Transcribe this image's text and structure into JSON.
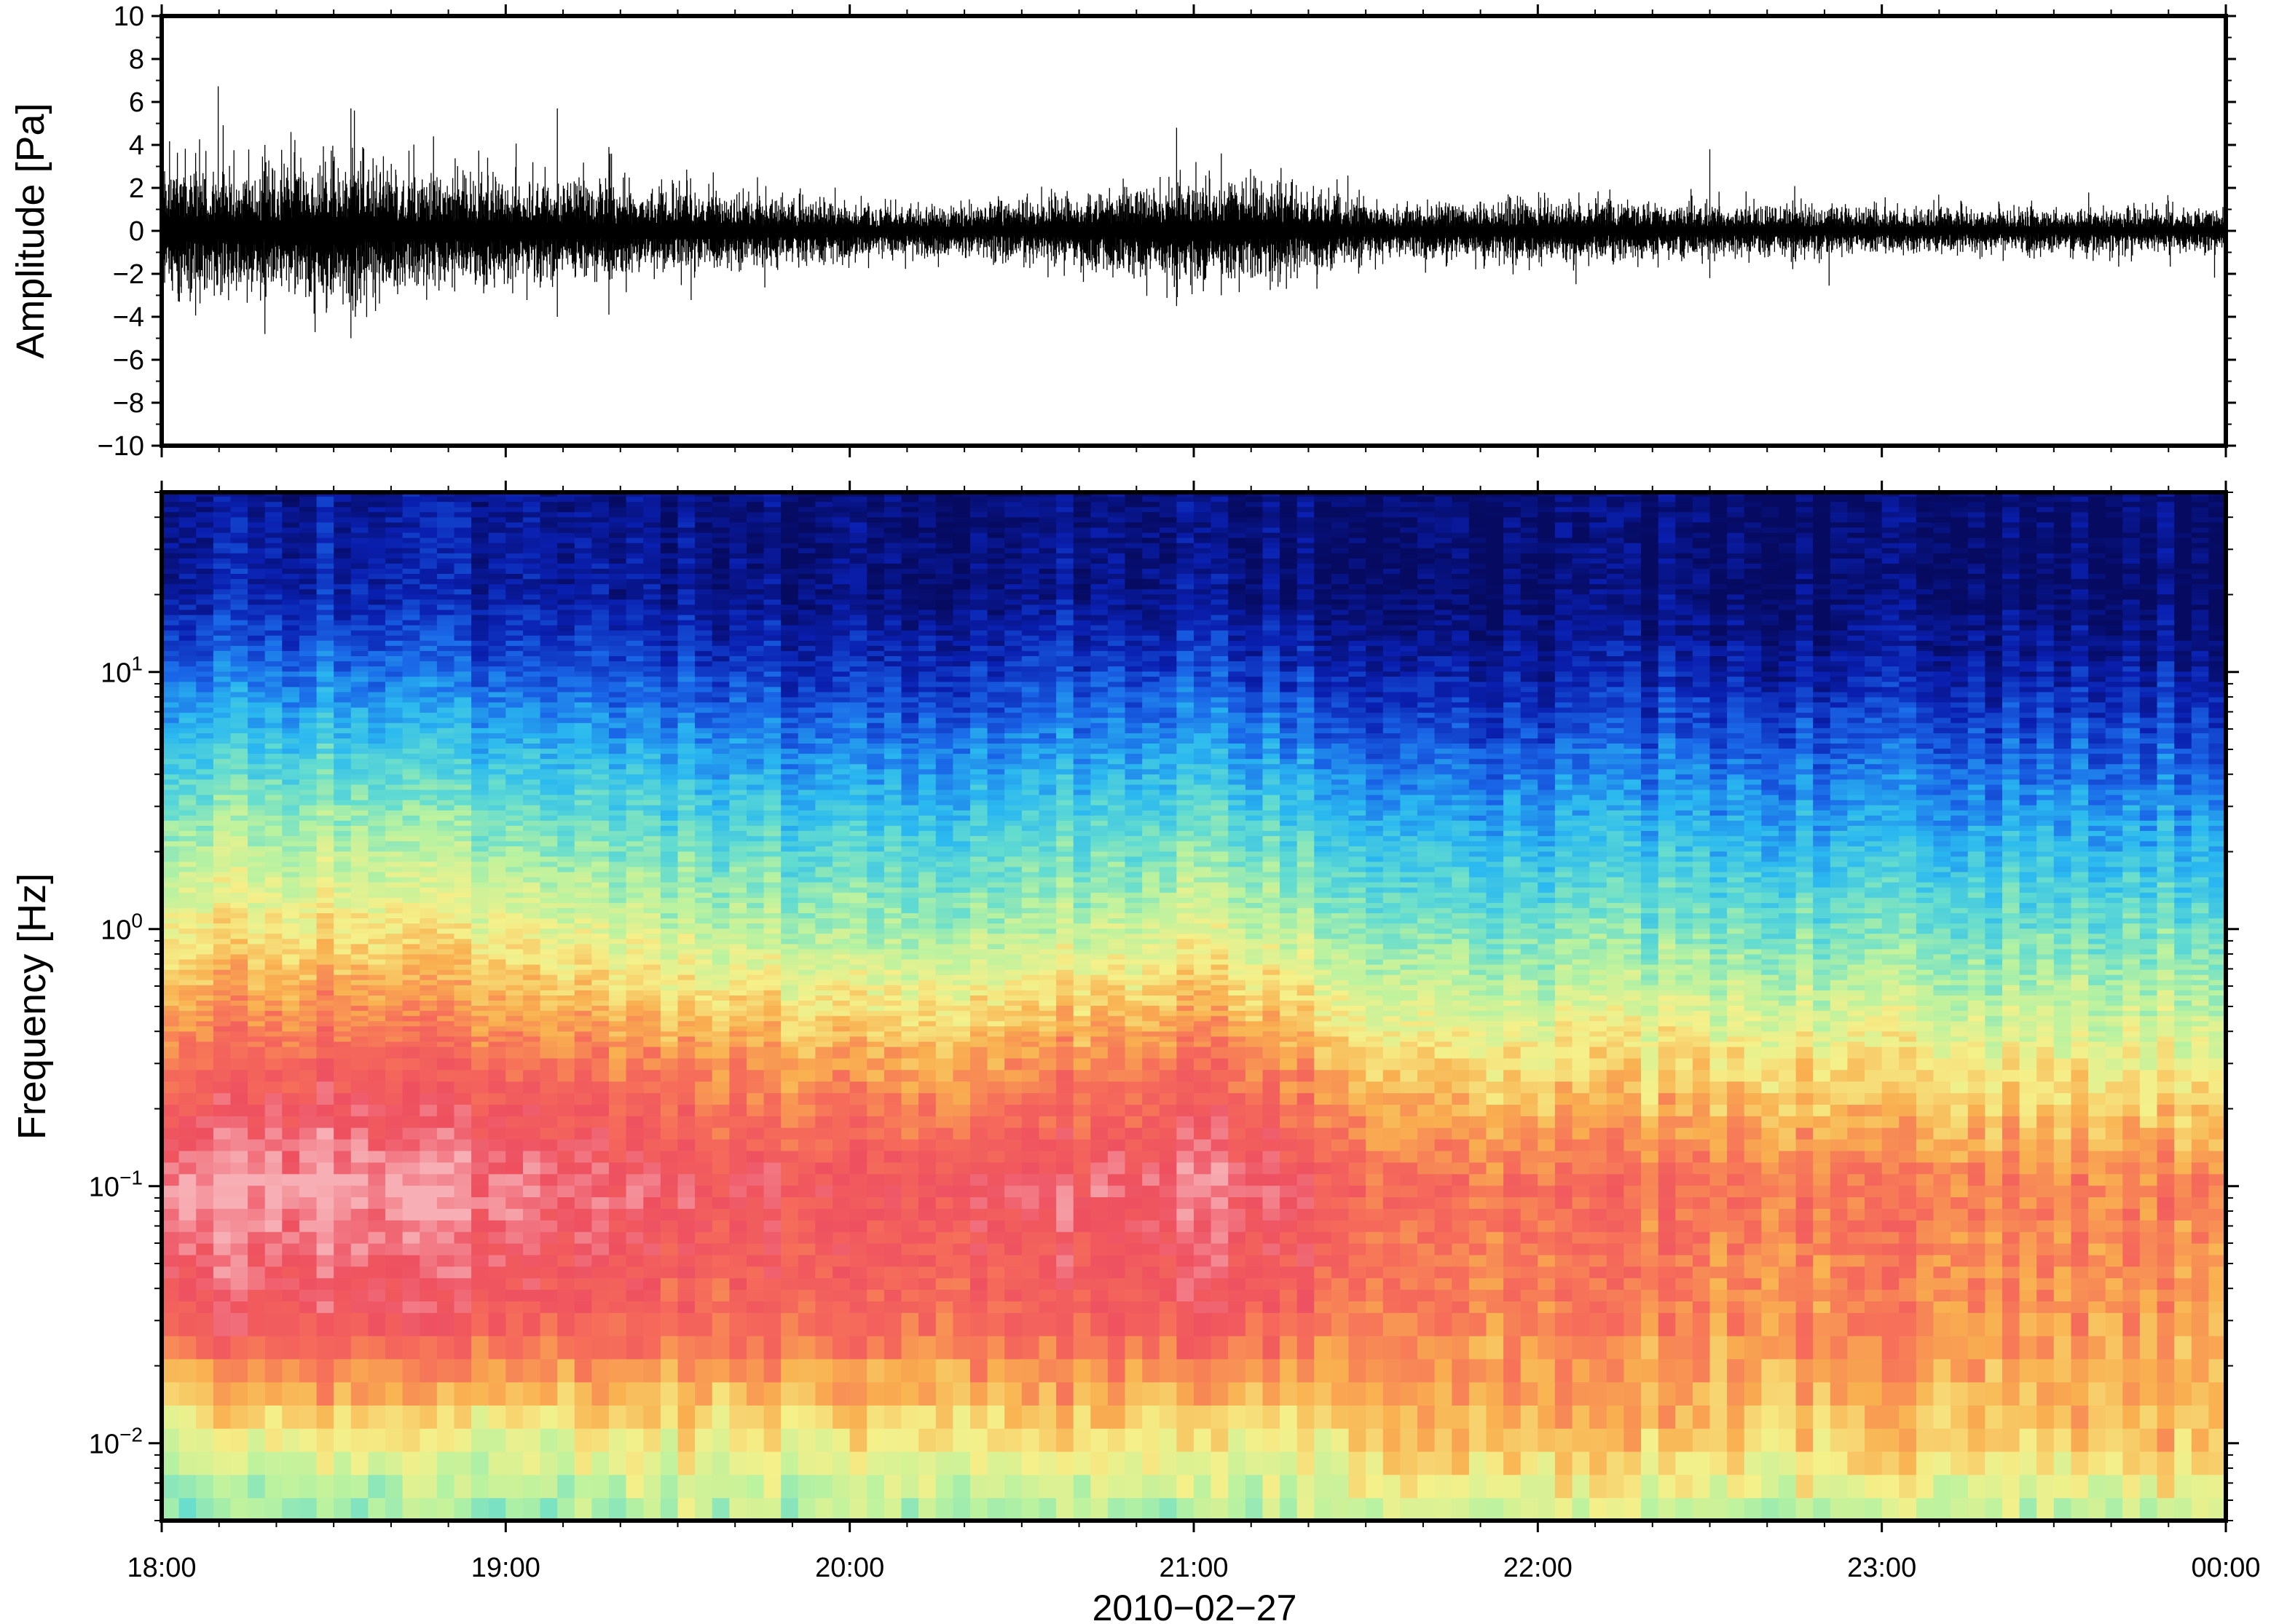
{
  "chart_data": [
    {
      "type": "line",
      "panel": "waveform",
      "ylabel": "Amplitude [Pa]",
      "ylim": [
        -10,
        10
      ],
      "yticks": [
        -10,
        -8,
        -6,
        -4,
        -2,
        0,
        2,
        4,
        6,
        8,
        10
      ],
      "ytick_labels": [
        "−10",
        "−8",
        "−6",
        "−4",
        "−2",
        "0",
        "2",
        "4",
        "6",
        "8",
        "10"
      ],
      "xlim": [
        "2010-02-27T18:00",
        "2010-02-28T00:00"
      ],
      "grid": false,
      "line_color": "#000000",
      "envelope_hours": [
        0,
        0.25,
        0.5,
        0.75,
        1.0,
        1.25,
        1.5,
        1.75,
        2.0,
        2.25,
        2.5,
        2.75,
        3.0,
        3.25,
        3.5,
        3.75,
        4.0,
        4.25,
        4.5,
        4.75,
        5.0,
        5.25,
        5.5,
        5.75,
        6.0
      ],
      "envelope_max": [
        3.2,
        2.8,
        3.4,
        2.5,
        2.4,
        2.3,
        1.9,
        1.6,
        1.3,
        1.2,
        1.4,
        1.9,
        2.4,
        2.2,
        1.2,
        1.3,
        1.5,
        1.3,
        1.2,
        1.2,
        1.0,
        1.1,
        1.0,
        1.0,
        1.0
      ],
      "spikes": [
        {
          "t_hours": 0.3,
          "min": -4.8,
          "max": 4.0
        },
        {
          "t_hours": 0.55,
          "min": -5.0,
          "max": 5.7
        },
        {
          "t_hours": 1.15,
          "min": -4.0,
          "max": 5.7
        },
        {
          "t_hours": 1.3,
          "min": -3.9,
          "max": 3.9
        },
        {
          "t_hours": 2.95,
          "min": -3.5,
          "max": 4.8
        },
        {
          "t_hours": 3.08,
          "min": -3.0,
          "max": 3.6
        },
        {
          "t_hours": 4.5,
          "min": -2.2,
          "max": 3.8
        }
      ]
    },
    {
      "type": "heatmap",
      "panel": "spectrogram",
      "ylabel": "Frequency [Hz]",
      "yscale": "log",
      "ylim": [
        0.005,
        50
      ],
      "yticks": [
        0.01,
        0.1,
        1,
        10
      ],
      "ytick_bases": [
        "10",
        "10",
        "10",
        "10"
      ],
      "ytick_exponents": [
        "−2",
        "−1",
        "0",
        "1"
      ],
      "xlim": [
        "2010-02-27T18:00",
        "2010-02-28T00:00"
      ],
      "colormap": "jet (low power blue → cyan → yellow → red → pink high power)",
      "colormap_stops": [
        "#060a60",
        "#0a1fb0",
        "#1a66e8",
        "#2ab8f0",
        "#63dcd0",
        "#b9f2a0",
        "#f5f08a",
        "#f9b050",
        "#f66d5a",
        "#ee5060",
        "#f7aeb4"
      ],
      "time_hours": [
        0,
        0.5,
        1.0,
        1.5,
        2.0,
        2.5,
        3.0,
        3.25,
        3.5,
        4.0,
        4.5,
        5.0,
        5.5,
        6.0
      ],
      "freq_hz": [
        0.005,
        0.01,
        0.03,
        0.1,
        0.3,
        1,
        3,
        10,
        20,
        50
      ],
      "power_index": [
        [
          0.45,
          0.56,
          0.88,
          1.0,
          0.82,
          0.62,
          0.45,
          0.22,
          0.1,
          0.07
        ],
        [
          0.45,
          0.58,
          0.88,
          1.0,
          0.84,
          0.62,
          0.45,
          0.22,
          0.1,
          0.07
        ],
        [
          0.45,
          0.55,
          0.84,
          0.96,
          0.8,
          0.58,
          0.4,
          0.18,
          0.08,
          0.06
        ],
        [
          0.5,
          0.6,
          0.82,
          0.9,
          0.75,
          0.52,
          0.35,
          0.15,
          0.06,
          0.04
        ],
        [
          0.5,
          0.6,
          0.82,
          0.88,
          0.72,
          0.48,
          0.32,
          0.12,
          0.04,
          0.03
        ],
        [
          0.5,
          0.62,
          0.82,
          0.9,
          0.74,
          0.5,
          0.33,
          0.14,
          0.05,
          0.03
        ],
        [
          0.48,
          0.6,
          0.86,
          0.96,
          0.8,
          0.56,
          0.38,
          0.16,
          0.06,
          0.04
        ],
        [
          0.5,
          0.6,
          0.84,
          0.92,
          0.76,
          0.52,
          0.34,
          0.14,
          0.05,
          0.03
        ],
        [
          0.55,
          0.68,
          0.78,
          0.82,
          0.65,
          0.45,
          0.28,
          0.09,
          0.02,
          0.02
        ],
        [
          0.52,
          0.68,
          0.76,
          0.8,
          0.62,
          0.42,
          0.26,
          0.08,
          0.02,
          0.02
        ],
        [
          0.52,
          0.66,
          0.76,
          0.8,
          0.64,
          0.44,
          0.28,
          0.1,
          0.03,
          0.02
        ],
        [
          0.5,
          0.66,
          0.76,
          0.78,
          0.62,
          0.42,
          0.26,
          0.09,
          0.02,
          0.02
        ],
        [
          0.5,
          0.66,
          0.74,
          0.78,
          0.6,
          0.42,
          0.26,
          0.09,
          0.02,
          0.02
        ],
        [
          0.52,
          0.68,
          0.74,
          0.78,
          0.6,
          0.42,
          0.26,
          0.09,
          0.02,
          0.02
        ]
      ]
    }
  ],
  "xaxis": {
    "tick_labels": [
      "18:00",
      "19:00",
      "20:00",
      "21:00",
      "22:00",
      "23:00",
      "00:00"
    ],
    "date_label": "2010−02−27"
  },
  "colors": {
    "frame": "#000000",
    "background": "#ffffff"
  }
}
